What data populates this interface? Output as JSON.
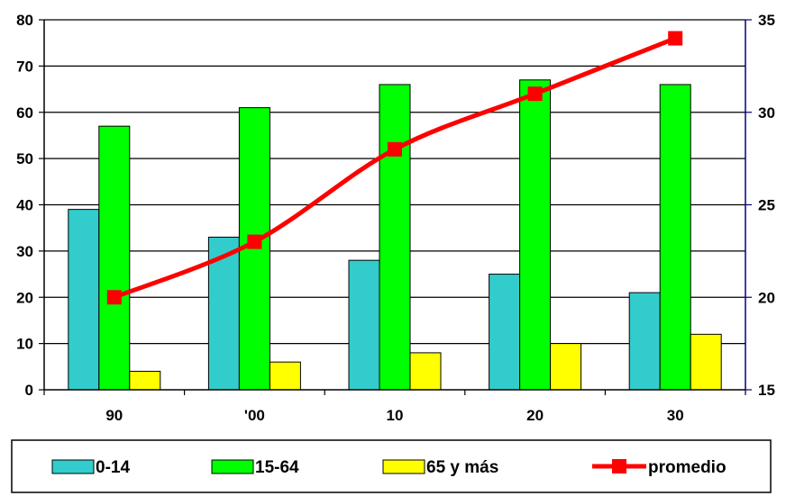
{
  "chart_data": {
    "type": "bar",
    "categories": [
      "90",
      "'00",
      "10",
      "20",
      "30"
    ],
    "series": [
      {
        "name": "0-14",
        "type": "bar",
        "axis": "left",
        "color": "#33CCCC",
        "values": [
          39,
          33,
          28,
          25,
          21
        ]
      },
      {
        "name": "15-64",
        "type": "bar",
        "axis": "left",
        "color": "#00FF00",
        "values": [
          57,
          61,
          66,
          67,
          66
        ]
      },
      {
        "name": "65 y más",
        "type": "bar",
        "axis": "left",
        "color": "#FFFF00",
        "values": [
          4,
          6,
          8,
          10,
          12
        ]
      },
      {
        "name": "promedio",
        "type": "line",
        "axis": "right",
        "color": "#FF0000",
        "values": [
          20,
          23,
          28,
          31,
          34
        ]
      }
    ],
    "y_left": {
      "range": [
        0,
        80
      ],
      "ticks": [
        "0",
        "10",
        "20",
        "30",
        "40",
        "50",
        "60",
        "70",
        "80"
      ]
    },
    "y_right": {
      "range": [
        15,
        35
      ],
      "ticks": [
        "15",
        "20",
        "25",
        "30",
        "35"
      ],
      "color": "#000080"
    },
    "grid": true,
    "legend_position": "bottom"
  }
}
